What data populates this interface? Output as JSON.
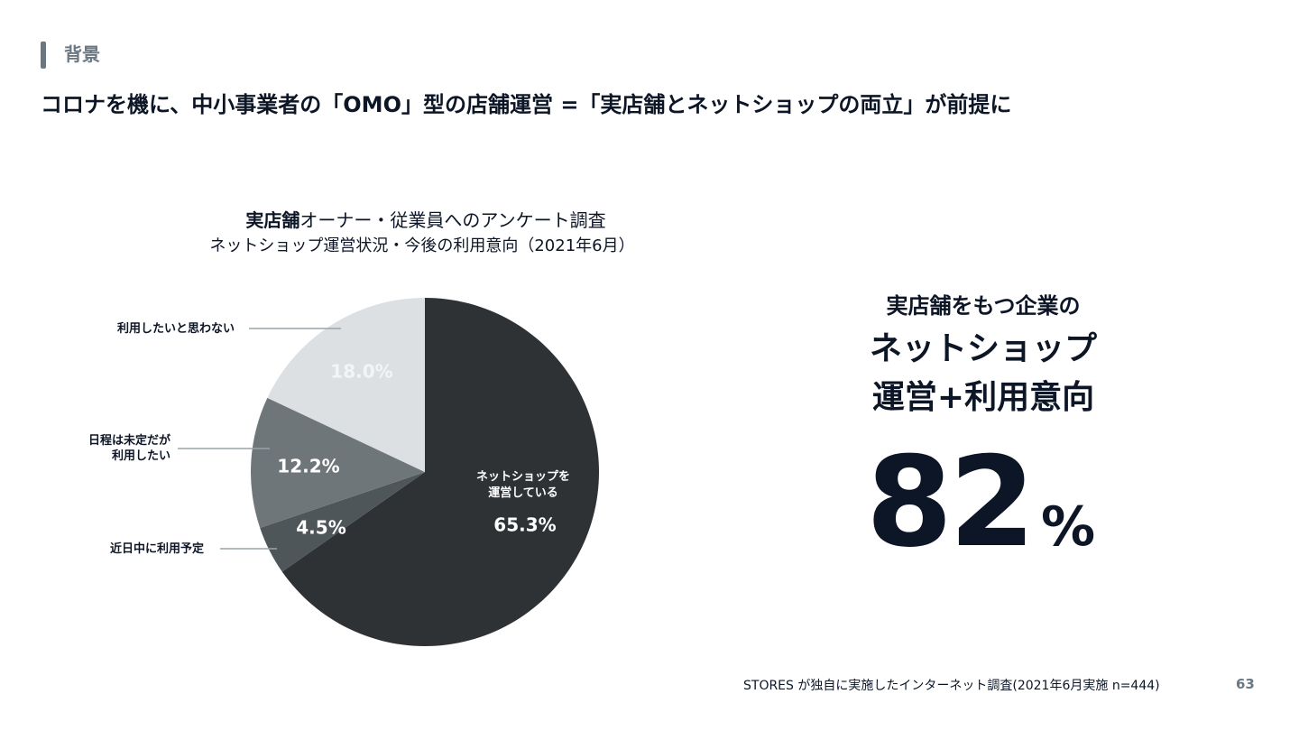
{
  "section": {
    "label": "背景"
  },
  "headline": "コロナを機に、中小事業者の「OMO」型の店舗運営 =「実店舗とネットショップの両立」が前提に",
  "callout": {
    "sub": "実店舗をもつ企業の",
    "main_line1": "ネットショップ",
    "main_line2": "運営+利用意向",
    "big_value": "82",
    "big_unit": "%"
  },
  "footnote": "STORES が独自に実施したインターネット調査(2021年6月実施 n=444)",
  "page_number": "63",
  "colors": {
    "operating": "#2e3235",
    "planned": "#4f5659",
    "undecided": "#6f7679",
    "not_intending": "#dde0e3",
    "leader_line": "#9aa3a8",
    "text_dark": "#0d1626",
    "text_white": "#ffffff"
  },
  "chart_data": {
    "type": "pie",
    "title_bold": "実店舗",
    "title_rest": "オーナー・従業員へのアンケート調査",
    "subtitle": "ネットショップ運営状況・今後の利用意向（2021年6月）",
    "slices": [
      {
        "key": "operating",
        "label_lines": [
          "ネットショップを",
          "運営している"
        ],
        "value": 65.3,
        "value_label": "65.3%",
        "label_placement": "inside"
      },
      {
        "key": "planned",
        "label_lines": [
          "近日中に利用予定"
        ],
        "value": 4.5,
        "value_label": "4.5%",
        "label_placement": "outside-left"
      },
      {
        "key": "undecided",
        "label_lines": [
          "日程は未定だが",
          "利用したい"
        ],
        "value": 12.2,
        "value_label": "12.2%",
        "label_placement": "outside-left"
      },
      {
        "key": "not_intending",
        "label_lines": [
          "利用したいと思わない"
        ],
        "value": 18.0,
        "value_label": "18.0%",
        "label_placement": "outside-left"
      }
    ],
    "start_angle": "12 o'clock",
    "direction": "clockwise",
    "legend": "none"
  }
}
